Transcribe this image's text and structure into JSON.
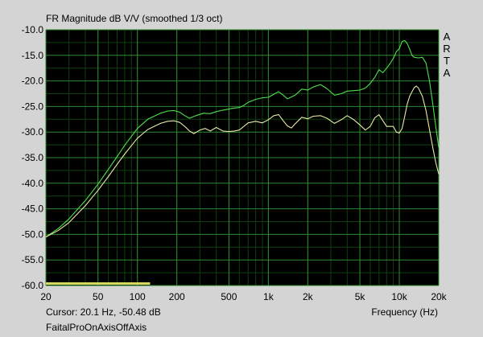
{
  "chart_title": "FR Magnitude dB V/V (smoothed 1/3 oct)",
  "brand_letters": [
    "A",
    "R",
    "T",
    "A"
  ],
  "cursor_readout": "Cursor: 20.1 Hz, -50.48 dB",
  "file_name": "FaitalProOnAxisOffAxis",
  "colors": {
    "plot_bg": "#000000",
    "major_grid": "#2f8a2f",
    "minor_grid": "#0f3f0f",
    "series_on_axis": "#4ee04e",
    "series_off_axis": "#e8e8a8",
    "cursor_bar": "#d8d860"
  },
  "chart_data": {
    "type": "line",
    "title": "FR Magnitude dB V/V (smoothed 1/3 oct)",
    "xlabel": "Frequency (Hz)",
    "ylabel": "",
    "x_scale": "log",
    "xlim": [
      20,
      20000
    ],
    "ylim": [
      -60,
      -10
    ],
    "grid": true,
    "x_ticks": [
      {
        "value": 20,
        "label": "20"
      },
      {
        "value": 50,
        "label": "50"
      },
      {
        "value": 100,
        "label": "100"
      },
      {
        "value": 200,
        "label": "200"
      },
      {
        "value": 500,
        "label": "500"
      },
      {
        "value": 1000,
        "label": "1k"
      },
      {
        "value": 2000,
        "label": "2k"
      },
      {
        "value": 5000,
        "label": "5k"
      },
      {
        "value": 10000,
        "label": "10k"
      },
      {
        "value": 20000,
        "label": "20k"
      }
    ],
    "y_ticks": [
      {
        "value": -10,
        "label": "-10.0"
      },
      {
        "value": -15,
        "label": "-15.0"
      },
      {
        "value": -20,
        "label": "-20.0"
      },
      {
        "value": -25,
        "label": "-25.0"
      },
      {
        "value": -30,
        "label": "-30.0"
      },
      {
        "value": -35,
        "label": "-35.0"
      },
      {
        "value": -40,
        "label": "-40.0"
      },
      {
        "value": -45,
        "label": "-45.0"
      },
      {
        "value": -50,
        "label": "-50.0"
      },
      {
        "value": -55,
        "label": "-55.0"
      },
      {
        "value": -60,
        "label": "-60.0"
      }
    ],
    "series": [
      {
        "key": "on_axis",
        "points": [
          [
            20,
            -50.5
          ],
          [
            25,
            -48.8
          ],
          [
            30,
            -47.0
          ],
          [
            40,
            -43.4
          ],
          [
            50,
            -40.2
          ],
          [
            60,
            -37.3
          ],
          [
            70,
            -34.8
          ],
          [
            80,
            -32.6
          ],
          [
            100,
            -29.3
          ],
          [
            120,
            -27.5
          ],
          [
            150,
            -26.3
          ],
          [
            170,
            -25.9
          ],
          [
            190,
            -25.8
          ],
          [
            210,
            -26.1
          ],
          [
            230,
            -26.8
          ],
          [
            250,
            -27.3
          ],
          [
            280,
            -26.8
          ],
          [
            320,
            -26.3
          ],
          [
            360,
            -26.4
          ],
          [
            400,
            -26.0
          ],
          [
            450,
            -25.7
          ],
          [
            500,
            -25.5
          ],
          [
            550,
            -25.3
          ],
          [
            600,
            -25.2
          ],
          [
            650,
            -24.8
          ],
          [
            700,
            -24.2
          ],
          [
            800,
            -23.6
          ],
          [
            900,
            -23.3
          ],
          [
            1000,
            -23.2
          ],
          [
            1100,
            -22.6
          ],
          [
            1200,
            -22.1
          ],
          [
            1300,
            -22.8
          ],
          [
            1400,
            -23.5
          ],
          [
            1600,
            -22.8
          ],
          [
            1800,
            -21.6
          ],
          [
            2000,
            -21.8
          ],
          [
            2200,
            -21.2
          ],
          [
            2500,
            -20.7
          ],
          [
            2800,
            -21.5
          ],
          [
            3200,
            -22.8
          ],
          [
            3600,
            -22.5
          ],
          [
            4000,
            -22.0
          ],
          [
            4500,
            -21.9
          ],
          [
            5000,
            -21.8
          ],
          [
            5500,
            -21.4
          ],
          [
            6000,
            -20.5
          ],
          [
            6500,
            -19.3
          ],
          [
            7000,
            -17.8
          ],
          [
            7500,
            -18.4
          ],
          [
            8000,
            -17.5
          ],
          [
            8500,
            -16.6
          ],
          [
            9000,
            -15.6
          ],
          [
            9500,
            -14.3
          ],
          [
            10000,
            -13.7
          ],
          [
            10500,
            -12.3
          ],
          [
            11000,
            -12.1
          ],
          [
            11500,
            -12.7
          ],
          [
            12000,
            -13.8
          ],
          [
            12500,
            -15.0
          ],
          [
            13000,
            -15.4
          ],
          [
            14000,
            -15.5
          ],
          [
            15000,
            -15.4
          ],
          [
            16000,
            -16.5
          ],
          [
            17000,
            -20.0
          ],
          [
            18000,
            -24.5
          ],
          [
            19000,
            -29.0
          ],
          [
            20000,
            -33.0
          ]
        ]
      },
      {
        "key": "off_axis",
        "points": [
          [
            20,
            -50.5
          ],
          [
            25,
            -49.2
          ],
          [
            30,
            -47.7
          ],
          [
            40,
            -44.4
          ],
          [
            50,
            -41.4
          ],
          [
            60,
            -38.7
          ],
          [
            70,
            -36.3
          ],
          [
            80,
            -34.3
          ],
          [
            100,
            -31.2
          ],
          [
            120,
            -29.5
          ],
          [
            150,
            -28.3
          ],
          [
            170,
            -27.9
          ],
          [
            190,
            -27.8
          ],
          [
            210,
            -28.1
          ],
          [
            230,
            -28.9
          ],
          [
            250,
            -29.8
          ],
          [
            270,
            -30.3
          ],
          [
            300,
            -29.6
          ],
          [
            330,
            -29.3
          ],
          [
            360,
            -29.8
          ],
          [
            400,
            -29.1
          ],
          [
            450,
            -29.8
          ],
          [
            500,
            -29.9
          ],
          [
            550,
            -29.8
          ],
          [
            600,
            -29.6
          ],
          [
            700,
            -28.2
          ],
          [
            800,
            -27.9
          ],
          [
            900,
            -28.2
          ],
          [
            1000,
            -27.6
          ],
          [
            1100,
            -26.8
          ],
          [
            1200,
            -26.6
          ],
          [
            1300,
            -27.8
          ],
          [
            1400,
            -28.8
          ],
          [
            1500,
            -29.2
          ],
          [
            1600,
            -28.4
          ],
          [
            1800,
            -27.1
          ],
          [
            2000,
            -27.4
          ],
          [
            2200,
            -26.9
          ],
          [
            2500,
            -26.8
          ],
          [
            2800,
            -27.3
          ],
          [
            3200,
            -28.3
          ],
          [
            3600,
            -27.6
          ],
          [
            4000,
            -26.8
          ],
          [
            4500,
            -27.6
          ],
          [
            5000,
            -28.6
          ],
          [
            5500,
            -29.6
          ],
          [
            6000,
            -28.9
          ],
          [
            6500,
            -27.2
          ],
          [
            7000,
            -26.6
          ],
          [
            7500,
            -27.8
          ],
          [
            8000,
            -28.9
          ],
          [
            8500,
            -28.9
          ],
          [
            9000,
            -28.9
          ],
          [
            9500,
            -30.0
          ],
          [
            10000,
            -30.2
          ],
          [
            10500,
            -29.3
          ],
          [
            11000,
            -26.9
          ],
          [
            11500,
            -24.5
          ],
          [
            12000,
            -23.0
          ],
          [
            12500,
            -22.1
          ],
          [
            13000,
            -21.3
          ],
          [
            13500,
            -21.0
          ],
          [
            14000,
            -21.4
          ],
          [
            15000,
            -23.0
          ],
          [
            16000,
            -25.8
          ],
          [
            17000,
            -29.5
          ],
          [
            18000,
            -33.0
          ],
          [
            19000,
            -36.0
          ],
          [
            20000,
            -38.2
          ]
        ]
      }
    ],
    "cursor_bar": {
      "x_start": 20,
      "x_end": 125,
      "y": -59.6
    }
  }
}
